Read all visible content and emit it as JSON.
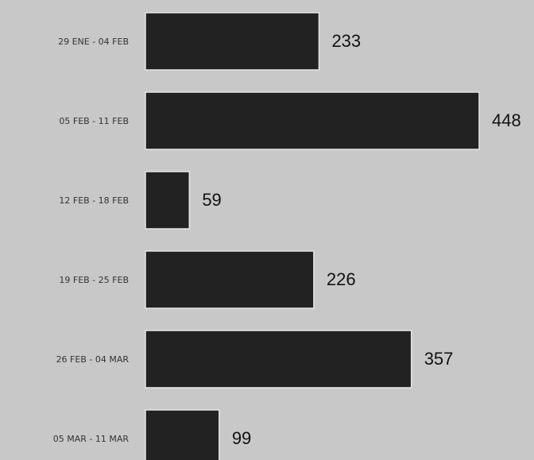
{
  "chart_data": {
    "type": "bar",
    "orientation": "horizontal",
    "categories": [
      "29 ENE - 04 FEB",
      "05 FEB - 11 FEB",
      "12 FEB - 18 FEB",
      "19 FEB - 25 FEB",
      "26 FEB - 04 MAR",
      "05 MAR - 11 MAR"
    ],
    "values": [
      233,
      448,
      59,
      226,
      357,
      99
    ],
    "color": "#222222"
  }
}
